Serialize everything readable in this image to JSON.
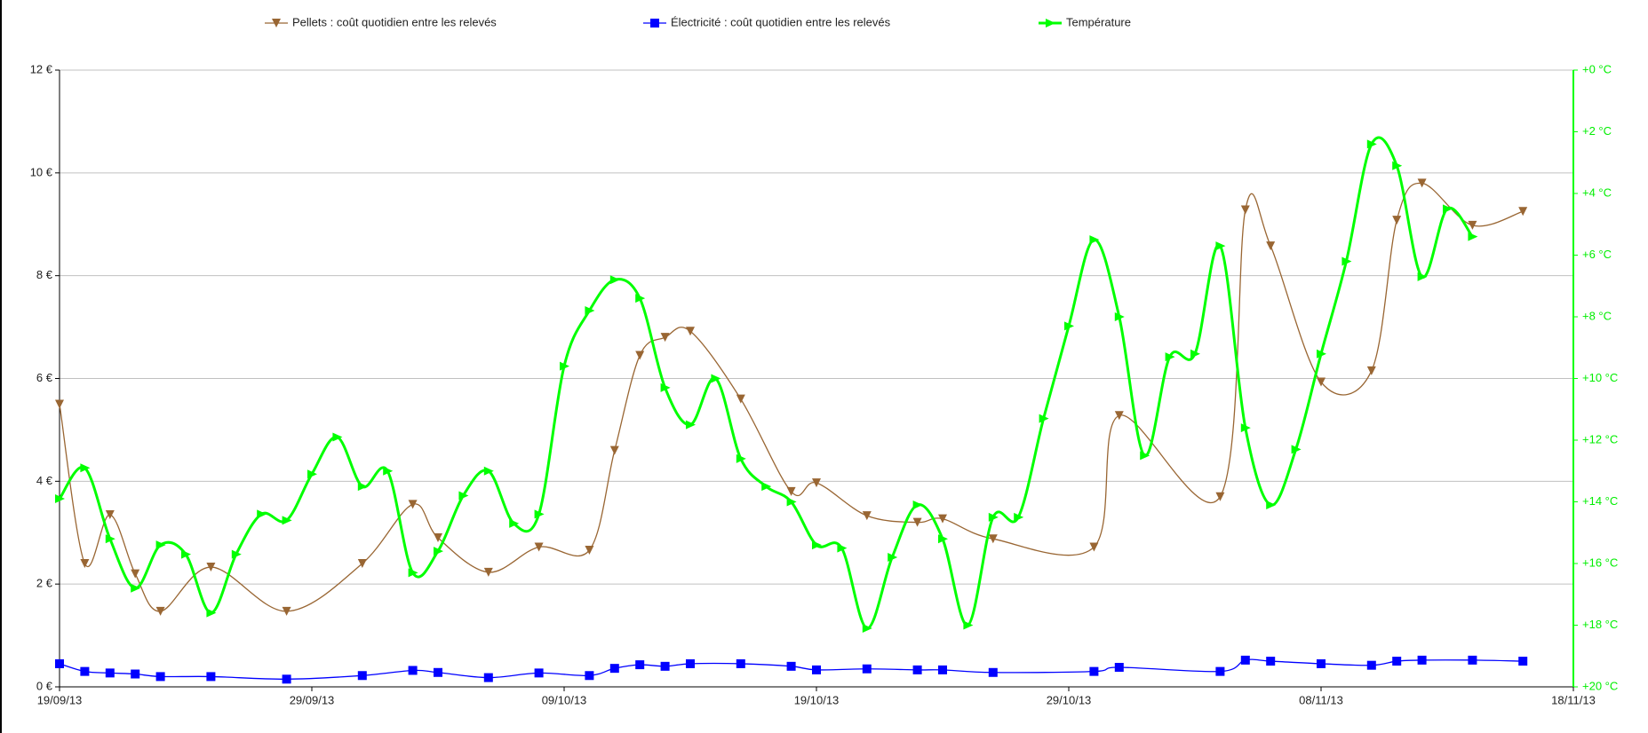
{
  "chart_data": {
    "type": "line",
    "xlim": [
      "2013-09-19",
      "2013-11-18"
    ],
    "xticks": [
      {
        "value": "2013-09-19",
        "label": "19/09/13"
      },
      {
        "value": "2013-09-29",
        "label": "29/09/13"
      },
      {
        "value": "2013-10-09",
        "label": "09/10/13"
      },
      {
        "value": "2013-10-19",
        "label": "19/10/13"
      },
      {
        "value": "2013-10-29",
        "label": "29/10/13"
      },
      {
        "value": "2013-11-08",
        "label": "08/11/13"
      },
      {
        "value": "2013-11-18",
        "label": "18/11/13"
      }
    ],
    "ylim": [
      0,
      12
    ],
    "yticks": [
      {
        "value": 0,
        "label": "0 €"
      },
      {
        "value": 2,
        "label": "2 €"
      },
      {
        "value": 4,
        "label": "4 €"
      },
      {
        "value": 6,
        "label": "6 €"
      },
      {
        "value": 8,
        "label": "8 €"
      },
      {
        "value": 10,
        "label": "10 €"
      },
      {
        "value": 12,
        "label": "12 €"
      }
    ],
    "y2lim": [
      20,
      0
    ],
    "y2ticks": [
      {
        "value": 0,
        "label": "+0 °C"
      },
      {
        "value": 2,
        "label": "+2 °C"
      },
      {
        "value": 4,
        "label": "+4 °C"
      },
      {
        "value": 6,
        "label": "+6 °C"
      },
      {
        "value": 8,
        "label": "+8 °C"
      },
      {
        "value": 10,
        "label": "+10 °C"
      },
      {
        "value": 12,
        "label": "+12 °C"
      },
      {
        "value": 14,
        "label": "+14 °C"
      },
      {
        "value": 16,
        "label": "+16 °C"
      },
      {
        "value": 18,
        "label": "+18 °C"
      },
      {
        "value": 20,
        "label": "+20 °C"
      }
    ],
    "grid": true,
    "series": [
      {
        "name": "Pellets : coût quotidien entre les relevés",
        "color": "#996633",
        "marker": "triangle-down",
        "x": [
          "2013-09-19",
          "2013-09-20",
          "2013-09-21",
          "2013-09-22",
          "2013-09-23",
          "2013-09-25",
          "2013-09-28",
          "2013-10-01",
          "2013-10-03",
          "2013-10-04",
          "2013-10-06",
          "2013-10-08",
          "2013-10-10",
          "2013-10-11",
          "2013-10-12",
          "2013-10-13",
          "2013-10-14",
          "2013-10-16",
          "2013-10-18",
          "2013-10-19",
          "2013-10-21",
          "2013-10-23",
          "2013-10-24",
          "2013-10-26",
          "2013-10-30",
          "2013-10-31",
          "2013-11-04",
          "2013-11-05",
          "2013-11-06",
          "2013-11-08",
          "2013-11-10",
          "2013-11-11",
          "2013-11-12",
          "2013-11-14",
          "2013-11-16"
        ],
        "values": [
          5.5,
          2.4,
          3.35,
          2.2,
          1.47,
          2.33,
          1.47,
          2.4,
          3.55,
          2.9,
          2.23,
          2.72,
          2.66,
          4.6,
          6.45,
          6.8,
          6.92,
          5.6,
          3.8,
          3.97,
          3.33,
          3.2,
          3.27,
          2.88,
          2.72,
          5.28,
          3.7,
          9.28,
          8.58,
          5.93,
          6.15,
          9.08,
          9.8,
          8.98,
          9.25
        ]
      },
      {
        "name": "Électricité : coût quotidien entre les relevés",
        "color": "#0000ff",
        "marker": "square",
        "x": [
          "2013-09-19",
          "2013-09-20",
          "2013-09-21",
          "2013-09-22",
          "2013-09-23",
          "2013-09-25",
          "2013-09-28",
          "2013-10-01",
          "2013-10-03",
          "2013-10-04",
          "2013-10-06",
          "2013-10-08",
          "2013-10-10",
          "2013-10-11",
          "2013-10-12",
          "2013-10-13",
          "2013-10-14",
          "2013-10-16",
          "2013-10-18",
          "2013-10-19",
          "2013-10-21",
          "2013-10-23",
          "2013-10-24",
          "2013-10-26",
          "2013-10-30",
          "2013-10-31",
          "2013-11-04",
          "2013-11-05",
          "2013-11-06",
          "2013-11-08",
          "2013-11-10",
          "2013-11-11",
          "2013-11-12",
          "2013-11-14",
          "2013-11-16"
        ],
        "values": [
          0.45,
          0.3,
          0.27,
          0.25,
          0.2,
          0.2,
          0.15,
          0.22,
          0.32,
          0.28,
          0.18,
          0.27,
          0.22,
          0.36,
          0.43,
          0.4,
          0.45,
          0.45,
          0.4,
          0.33,
          0.35,
          0.33,
          0.33,
          0.28,
          0.3,
          0.38,
          0.3,
          0.52,
          0.5,
          0.45,
          0.42,
          0.5,
          0.52,
          0.52,
          0.5
        ]
      },
      {
        "name": "Température",
        "color": "#00ff00",
        "marker": "triangle-right",
        "axis": "y2",
        "x": [
          "2013-09-19",
          "2013-09-20",
          "2013-09-21",
          "2013-09-22",
          "2013-09-23",
          "2013-09-24",
          "2013-09-25",
          "2013-09-26",
          "2013-09-27",
          "2013-09-28",
          "2013-09-29",
          "2013-09-30",
          "2013-10-01",
          "2013-10-02",
          "2013-10-03",
          "2013-10-04",
          "2013-10-05",
          "2013-10-06",
          "2013-10-07",
          "2013-10-08",
          "2013-10-09",
          "2013-10-10",
          "2013-10-11",
          "2013-10-12",
          "2013-10-13",
          "2013-10-14",
          "2013-10-15",
          "2013-10-16",
          "2013-10-17",
          "2013-10-18",
          "2013-10-19",
          "2013-10-20",
          "2013-10-21",
          "2013-10-22",
          "2013-10-23",
          "2013-10-24",
          "2013-10-25",
          "2013-10-26",
          "2013-10-27",
          "2013-10-28",
          "2013-10-29",
          "2013-10-30",
          "2013-10-31",
          "2013-11-01",
          "2013-11-02",
          "2013-11-03",
          "2013-11-04",
          "2013-11-05",
          "2013-11-06",
          "2013-11-07",
          "2013-11-08",
          "2013-11-09",
          "2013-11-10",
          "2013-11-11",
          "2013-11-12",
          "2013-11-13",
          "2013-11-14"
        ],
        "values": [
          13.9,
          12.9,
          15.2,
          16.8,
          15.4,
          15.7,
          17.6,
          15.7,
          14.4,
          14.6,
          13.1,
          11.9,
          13.5,
          13.0,
          16.3,
          15.6,
          13.8,
          13.0,
          14.7,
          14.4,
          9.6,
          7.8,
          6.8,
          7.4,
          10.3,
          11.5,
          10.0,
          12.6,
          13.5,
          14.0,
          15.4,
          15.5,
          18.1,
          15.8,
          14.1,
          15.2,
          18.0,
          14.5,
          14.5,
          11.3,
          8.3,
          5.5,
          8.0,
          12.5,
          9.3,
          9.2,
          5.7,
          11.6,
          14.1,
          12.3,
          9.2,
          6.2,
          2.4,
          3.1,
          6.7,
          4.5,
          5.4
        ]
      }
    ]
  }
}
